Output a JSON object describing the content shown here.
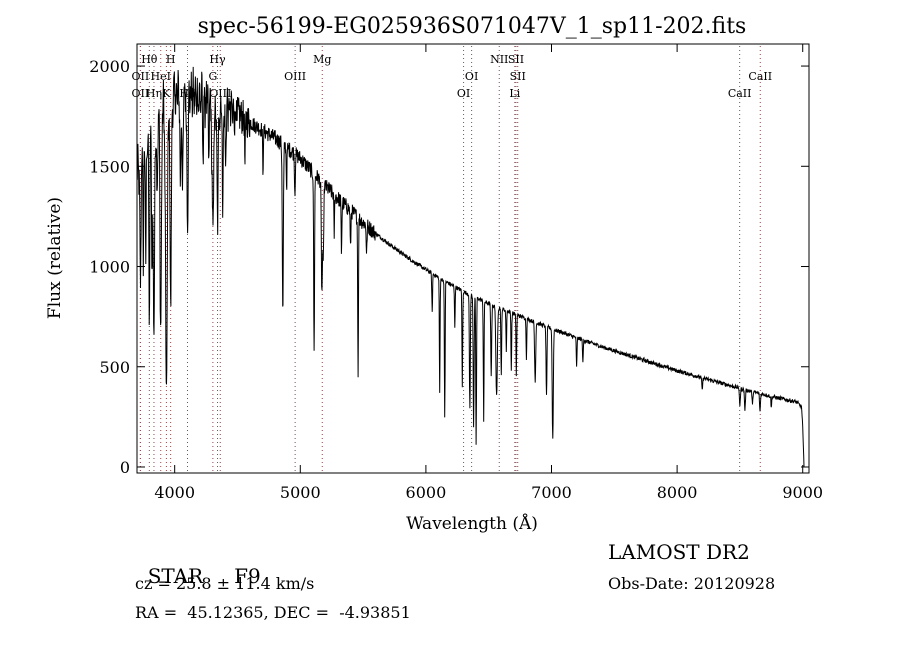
{
  "chart_data": {
    "type": "line",
    "title": "spec-56199-EG025936S071047V_1_sp11-202.fits",
    "xlabel": "Wavelength (Å)",
    "ylabel": "Flux (relative)",
    "xlim": [
      3700,
      9050
    ],
    "ylim": [
      -30,
      2110
    ],
    "x_ticks": [
      4000,
      5000,
      6000,
      7000,
      8000,
      9000
    ],
    "y_ticks": [
      0,
      500,
      1000,
      1500,
      2000
    ],
    "grid": false,
    "legend": "none",
    "line_color": "#000000",
    "marker_line_color": "#8b4a4a",
    "line_markers": [
      {
        "label": "Hθ",
        "wavelength": 3798,
        "row": 1
      },
      {
        "label": "OII",
        "wavelength": 3727,
        "row": 2
      },
      {
        "label": "OII",
        "wavelength": 3727,
        "row": 3
      },
      {
        "label": "Hη",
        "wavelength": 3835,
        "row": 3
      },
      {
        "label": "HeI",
        "wavelength": 3889,
        "row": 2
      },
      {
        "label": "H",
        "wavelength": 3968,
        "row": 1
      },
      {
        "label": "K",
        "wavelength": 3934,
        "row": 3
      },
      {
        "label": "Hδ",
        "wavelength": 4102,
        "row": 3
      },
      {
        "label": "Hγ",
        "wavelength": 4341,
        "row": 1
      },
      {
        "label": "G",
        "wavelength": 4304,
        "row": 2
      },
      {
        "label": "OIII",
        "wavelength": 4363,
        "row": 3
      },
      {
        "label": "OIII",
        "wavelength": 4959,
        "row": 2
      },
      {
        "label": "Mg",
        "wavelength": 5175,
        "row": 1
      },
      {
        "label": "OI",
        "wavelength": 6364,
        "row": 2
      },
      {
        "label": "OI",
        "wavelength": 6300,
        "row": 3
      },
      {
        "label": "NII",
        "wavelength": 6584,
        "row": 1
      },
      {
        "label": "SII",
        "wavelength": 6717,
        "row": 1
      },
      {
        "label": "SII",
        "wavelength": 6731,
        "row": 2
      },
      {
        "label": "Li",
        "wavelength": 6708,
        "row": 3
      },
      {
        "label": "CaII",
        "wavelength": 8662,
        "row": 2
      },
      {
        "label": "CaII",
        "wavelength": 8498,
        "row": 3
      }
    ],
    "continuum": [
      [
        3700,
        1450
      ],
      [
        3800,
        1700
      ],
      [
        3900,
        1800
      ],
      [
        4000,
        1850
      ],
      [
        4100,
        1860
      ],
      [
        4200,
        1840
      ],
      [
        4300,
        1810
      ],
      [
        4400,
        1790
      ],
      [
        4500,
        1760
      ],
      [
        4600,
        1720
      ],
      [
        4700,
        1680
      ],
      [
        4800,
        1640
      ],
      [
        4900,
        1590
      ],
      [
        5000,
        1540
      ],
      [
        5100,
        1470
      ],
      [
        5200,
        1400
      ],
      [
        5300,
        1340
      ],
      [
        5400,
        1280
      ],
      [
        5500,
        1220
      ],
      [
        5600,
        1165
      ],
      [
        5700,
        1115
      ],
      [
        5800,
        1070
      ],
      [
        5900,
        1025
      ],
      [
        6000,
        985
      ],
      [
        6100,
        945
      ],
      [
        6200,
        910
      ],
      [
        6300,
        875
      ],
      [
        6400,
        845
      ],
      [
        6500,
        815
      ],
      [
        6600,
        790
      ],
      [
        6700,
        765
      ],
      [
        6800,
        740
      ],
      [
        6900,
        715
      ],
      [
        7000,
        690
      ],
      [
        7200,
        645
      ],
      [
        7400,
        600
      ],
      [
        7600,
        560
      ],
      [
        7800,
        520
      ],
      [
        8000,
        480
      ],
      [
        8200,
        445
      ],
      [
        8400,
        410
      ],
      [
        8600,
        375
      ],
      [
        8800,
        345
      ],
      [
        8950,
        325
      ],
      [
        8990,
        300
      ],
      [
        9000,
        200
      ],
      [
        9010,
        0
      ]
    ],
    "absorption_lines": [
      [
        3727,
        600,
        6
      ],
      [
        3750,
        500,
        5
      ],
      [
        3770,
        600,
        5
      ],
      [
        3798,
        900,
        6
      ],
      [
        3820,
        700,
        6
      ],
      [
        3835,
        1000,
        8
      ],
      [
        3860,
        400,
        6
      ],
      [
        3889,
        1100,
        8
      ],
      [
        3934,
        1450,
        10
      ],
      [
        3968,
        1000,
        8
      ],
      [
        4046,
        500,
        5
      ],
      [
        4063,
        550,
        5
      ],
      [
        4102,
        600,
        7
      ],
      [
        4226,
        300,
        4
      ],
      [
        4271,
        350,
        4
      ],
      [
        4304,
        650,
        9
      ],
      [
        4341,
        550,
        8
      ],
      [
        4383,
        500,
        5
      ],
      [
        4405,
        350,
        4
      ],
      [
        4560,
        250,
        4
      ],
      [
        4703,
        200,
        4
      ],
      [
        4861,
        850,
        6
      ],
      [
        4891,
        200,
        4
      ],
      [
        4957,
        200,
        4
      ],
      [
        5110,
        900,
        5
      ],
      [
        5172,
        550,
        6
      ],
      [
        5183,
        400,
        5
      ],
      [
        5270,
        200,
        4
      ],
      [
        5328,
        250,
        4
      ],
      [
        5400,
        200,
        4
      ],
      [
        5460,
        800,
        4
      ],
      [
        5528,
        150,
        4
      ],
      [
        6050,
        200,
        4
      ],
      [
        6110,
        570,
        4
      ],
      [
        6150,
        680,
        4
      ],
      [
        6230,
        200,
        4
      ],
      [
        6290,
        480,
        4
      ],
      [
        6350,
        570,
        5
      ],
      [
        6380,
        650,
        5
      ],
      [
        6400,
        730,
        4
      ],
      [
        6460,
        600,
        4
      ],
      [
        6520,
        360,
        5
      ],
      [
        6563,
        450,
        8
      ],
      [
        6600,
        340,
        4
      ],
      [
        6640,
        200,
        4
      ],
      [
        6680,
        290,
        4
      ],
      [
        6720,
        300,
        4
      ],
      [
        6800,
        200,
        4
      ],
      [
        6870,
        300,
        6
      ],
      [
        6960,
        350,
        5
      ],
      [
        7010,
        550,
        6
      ],
      [
        7200,
        150,
        4
      ],
      [
        7250,
        120,
        4
      ],
      [
        8200,
        60,
        5
      ],
      [
        8500,
        90,
        5
      ],
      [
        8540,
        100,
        5
      ],
      [
        8600,
        70,
        4
      ],
      [
        8660,
        90,
        5
      ],
      [
        8750,
        60,
        4
      ]
    ]
  },
  "info": {
    "class_label": "STAR",
    "subclass": "F9",
    "redshift": "cz = 25.8 ± 11.4 km/s",
    "coords": "RA =  45.12365, DEC =  -4.93851",
    "survey": "LAMOST DR2",
    "obs_date": "Obs-Date: 20120928"
  }
}
